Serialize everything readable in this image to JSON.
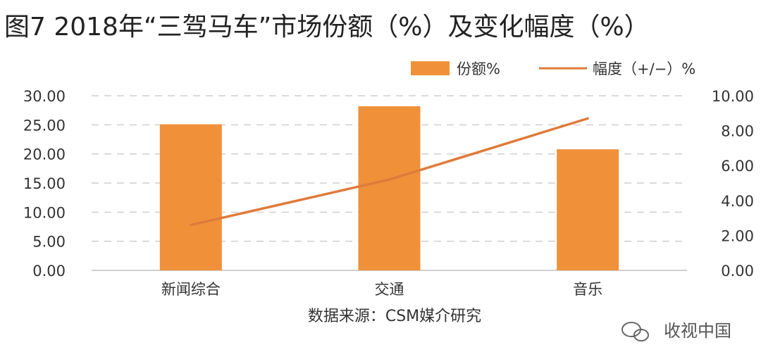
{
  "chart_data": {
    "type": "bar",
    "title": "图7 2018年“三驾马车”市场份额（%）及变化幅度（%）",
    "categories": [
      "新闻综合",
      "交通",
      "音乐"
    ],
    "series": [
      {
        "name": "份额%",
        "type": "bar",
        "axis": "left",
        "values": [
          25.1,
          28.2,
          20.8
        ]
      },
      {
        "name": "幅度（+/−）%",
        "type": "line",
        "axis": "right",
        "values": [
          2.6,
          5.2,
          8.7
        ]
      }
    ],
    "ylim": [
      0,
      30
    ],
    "yticks": [
      "0.00",
      "5.00",
      "10.00",
      "15.00",
      "20.00",
      "25.00",
      "30.00"
    ],
    "y2lim": [
      0,
      10
    ],
    "y2ticks": [
      "0.00",
      "2.00",
      "4.00",
      "6.00",
      "8.00",
      "10.00"
    ],
    "grid": true,
    "legend": "top-right",
    "bar_color": "#F0913A",
    "line_color": "#E07A3A",
    "source": "数据来源：CSM媒介研究",
    "watermark": "收视中国"
  }
}
